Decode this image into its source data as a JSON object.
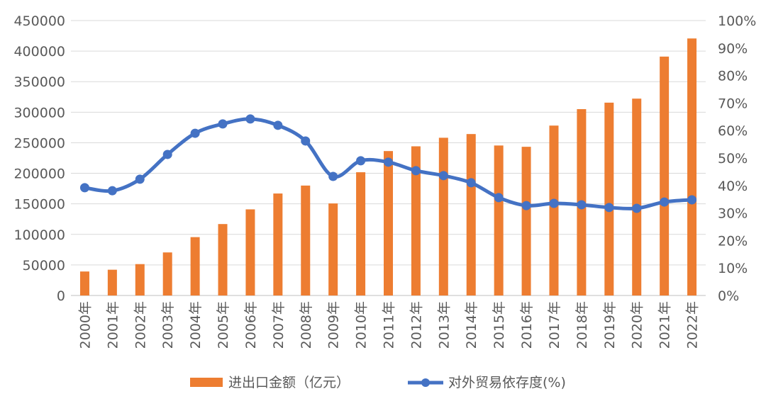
{
  "chart_data": {
    "type": "bar",
    "title": "",
    "categories": [
      "2000年",
      "2001年",
      "2002年",
      "2003年",
      "2004年",
      "2005年",
      "2006年",
      "2007年",
      "2008年",
      "2009年",
      "2010年",
      "2011年",
      "2012年",
      "2013年",
      "2014年",
      "2015年",
      "2016年",
      "2017年",
      "2018年",
      "2019年",
      "2020年",
      "2021年",
      "2022年"
    ],
    "series": [
      {
        "name": "进出口金额（亿元）",
        "type": "bar",
        "axis": "left",
        "color": "#ED7D31",
        "values": [
          39273,
          42184,
          51378,
          70484,
          95539,
          116922,
          140974,
          166924,
          179922,
          150648,
          201722,
          236402,
          244160,
          258169,
          264242,
          245503,
          243386,
          278099,
          305010,
          315627,
          322215,
          391009,
          420678
        ]
      },
      {
        "name": "对外贸易依存度(%)",
        "type": "line",
        "axis": "right",
        "color": "#4472C4",
        "values": [
          39.2,
          38.1,
          42.3,
          51.3,
          59.0,
          62.4,
          64.2,
          61.9,
          56.2,
          43.3,
          49.0,
          48.5,
          45.4,
          43.6,
          41.0,
          35.6,
          32.7,
          33.5,
          33.0,
          32.0,
          31.7,
          34.0,
          34.8
        ]
      }
    ],
    "y_left": {
      "ylim": [
        0,
        450000
      ],
      "ticks": [
        "0",
        "50000",
        "100000",
        "150000",
        "200000",
        "250000",
        "300000",
        "350000",
        "400000",
        "450000"
      ]
    },
    "y_right": {
      "ylim": [
        0,
        100
      ],
      "ticks": [
        "0%",
        "10%",
        "20%",
        "30%",
        "40%",
        "50%",
        "60%",
        "70%",
        "80%",
        "90%",
        "100%"
      ]
    },
    "grid": true,
    "legend_position": "bottom"
  }
}
